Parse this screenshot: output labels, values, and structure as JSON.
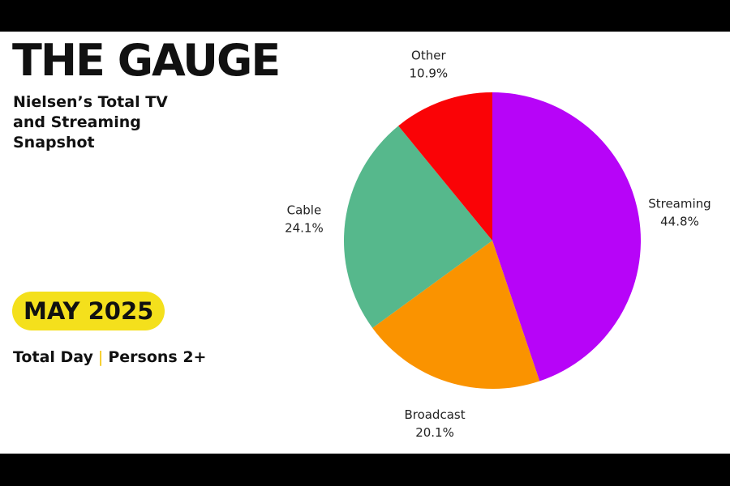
{
  "header": {
    "title": "THE GAUGE",
    "subtitle": "Nielsen’s Total TV and Streaming Snapshot",
    "date": "MAY 2025",
    "daypart": "Total Day",
    "separator": "|",
    "demo": "Persons 2+"
  },
  "colors": {
    "background": "#ffffff",
    "frame": "#000000",
    "pill": "#f4e01c",
    "text": "#111111"
  },
  "chart_data": {
    "type": "pie",
    "slices": [
      {
        "label": "Streaming",
        "value": 44.8,
        "value_label": "44.8%",
        "color": "#b704f8"
      },
      {
        "label": "Broadcast",
        "value": 20.1,
        "value_label": "20.1%",
        "color": "#fa9300"
      },
      {
        "label": "Cable",
        "value": 24.1,
        "value_label": "24.1%",
        "color": "#56b88c"
      },
      {
        "label": "Other",
        "value": 10.9,
        "value_label": "10.9%",
        "color": "#fa0306"
      }
    ],
    "start": "top",
    "direction": "clockwise"
  }
}
